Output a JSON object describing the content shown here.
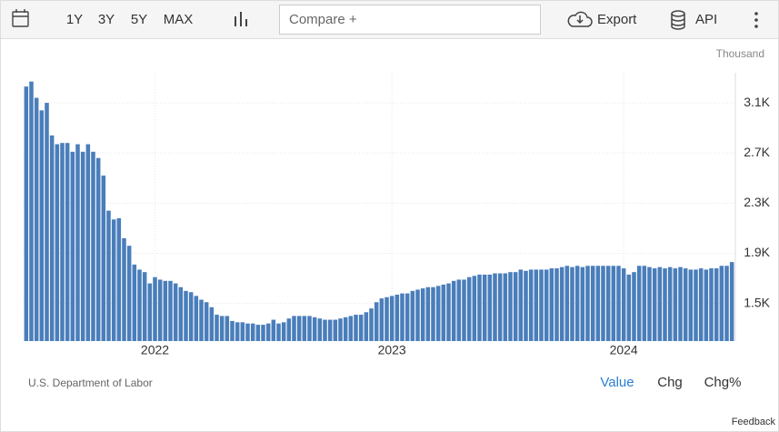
{
  "toolbar": {
    "ranges": [
      "1Y",
      "3Y",
      "5Y",
      "MAX"
    ],
    "compare": "Compare +",
    "export": "Export",
    "api": "API"
  },
  "footer": {
    "source": "U.S. Department of Labor",
    "tabs": [
      "Value",
      "Chg",
      "Chg%"
    ],
    "feedback": "Feedback"
  },
  "chart_data": {
    "type": "bar",
    "unit": "Thousand",
    "color": "#4a7ebb",
    "grid": true,
    "categories": [
      null,
      null,
      null,
      null,
      null,
      null,
      null,
      null,
      null,
      null,
      null,
      null,
      null,
      null,
      null,
      null,
      null,
      null,
      null,
      null,
      null,
      null,
      null,
      null,
      null,
      "2022",
      null,
      null,
      null,
      null,
      null,
      null,
      null,
      null,
      null,
      null,
      null,
      null,
      null,
      null,
      null,
      null,
      null,
      null,
      null,
      null,
      null,
      null,
      null,
      null,
      null,
      null,
      null,
      null,
      null,
      null,
      null,
      null,
      null,
      null,
      null,
      null,
      null,
      null,
      null,
      null,
      null,
      null,
      null,
      null,
      null,
      "2023",
      null,
      null,
      null,
      null,
      null,
      null,
      null,
      null,
      null,
      null,
      null,
      null,
      null,
      null,
      null,
      null,
      null,
      null,
      null,
      null,
      null,
      null,
      null,
      null,
      null,
      null,
      null,
      null,
      null,
      null,
      null,
      null,
      null,
      null,
      null,
      null,
      null,
      null,
      null,
      null,
      null,
      null,
      null,
      null,
      "2024",
      null,
      null,
      null,
      null,
      null,
      null,
      null,
      null,
      null,
      null,
      null,
      null,
      null,
      null,
      null,
      null,
      null,
      null,
      null,
      null,
      null
    ],
    "values": [
      3230,
      3270,
      3140,
      3040,
      3100,
      2840,
      2770,
      2780,
      2780,
      2710,
      2770,
      2710,
      2770,
      2710,
      2660,
      2520,
      2240,
      2170,
      2180,
      2020,
      1960,
      1810,
      1770,
      1750,
      1660,
      1710,
      1690,
      1680,
      1680,
      1660,
      1630,
      1600,
      1590,
      1560,
      1530,
      1510,
      1470,
      1410,
      1400,
      1400,
      1360,
      1350,
      1350,
      1340,
      1340,
      1330,
      1330,
      1340,
      1370,
      1340,
      1350,
      1380,
      1400,
      1400,
      1400,
      1400,
      1390,
      1380,
      1370,
      1370,
      1370,
      1380,
      1390,
      1400,
      1410,
      1410,
      1430,
      1460,
      1510,
      1540,
      1550,
      1560,
      1570,
      1580,
      1580,
      1600,
      1610,
      1620,
      1630,
      1630,
      1640,
      1650,
      1660,
      1680,
      1690,
      1690,
      1710,
      1720,
      1730,
      1730,
      1730,
      1740,
      1740,
      1740,
      1750,
      1750,
      1770,
      1760,
      1770,
      1770,
      1770,
      1770,
      1780,
      1780,
      1790,
      1800,
      1790,
      1800,
      1790,
      1800,
      1800,
      1800,
      1800,
      1800,
      1800,
      1800,
      1780,
      1730,
      1750,
      1800,
      1800,
      1790,
      1780,
      1790,
      1780,
      1790,
      1780,
      1790,
      1780,
      1770,
      1770,
      1780,
      1770,
      1780,
      1780,
      1800,
      1800,
      1830
    ],
    "ylim": [
      1200,
      3340
    ],
    "yticks": [
      {
        "value": 1500,
        "label": "1.5K"
      },
      {
        "value": 1900,
        "label": "1.9K"
      },
      {
        "value": 2300,
        "label": "2.3K"
      },
      {
        "value": 2700,
        "label": "2.7K"
      },
      {
        "value": 3100,
        "label": "3.1K"
      }
    ]
  }
}
